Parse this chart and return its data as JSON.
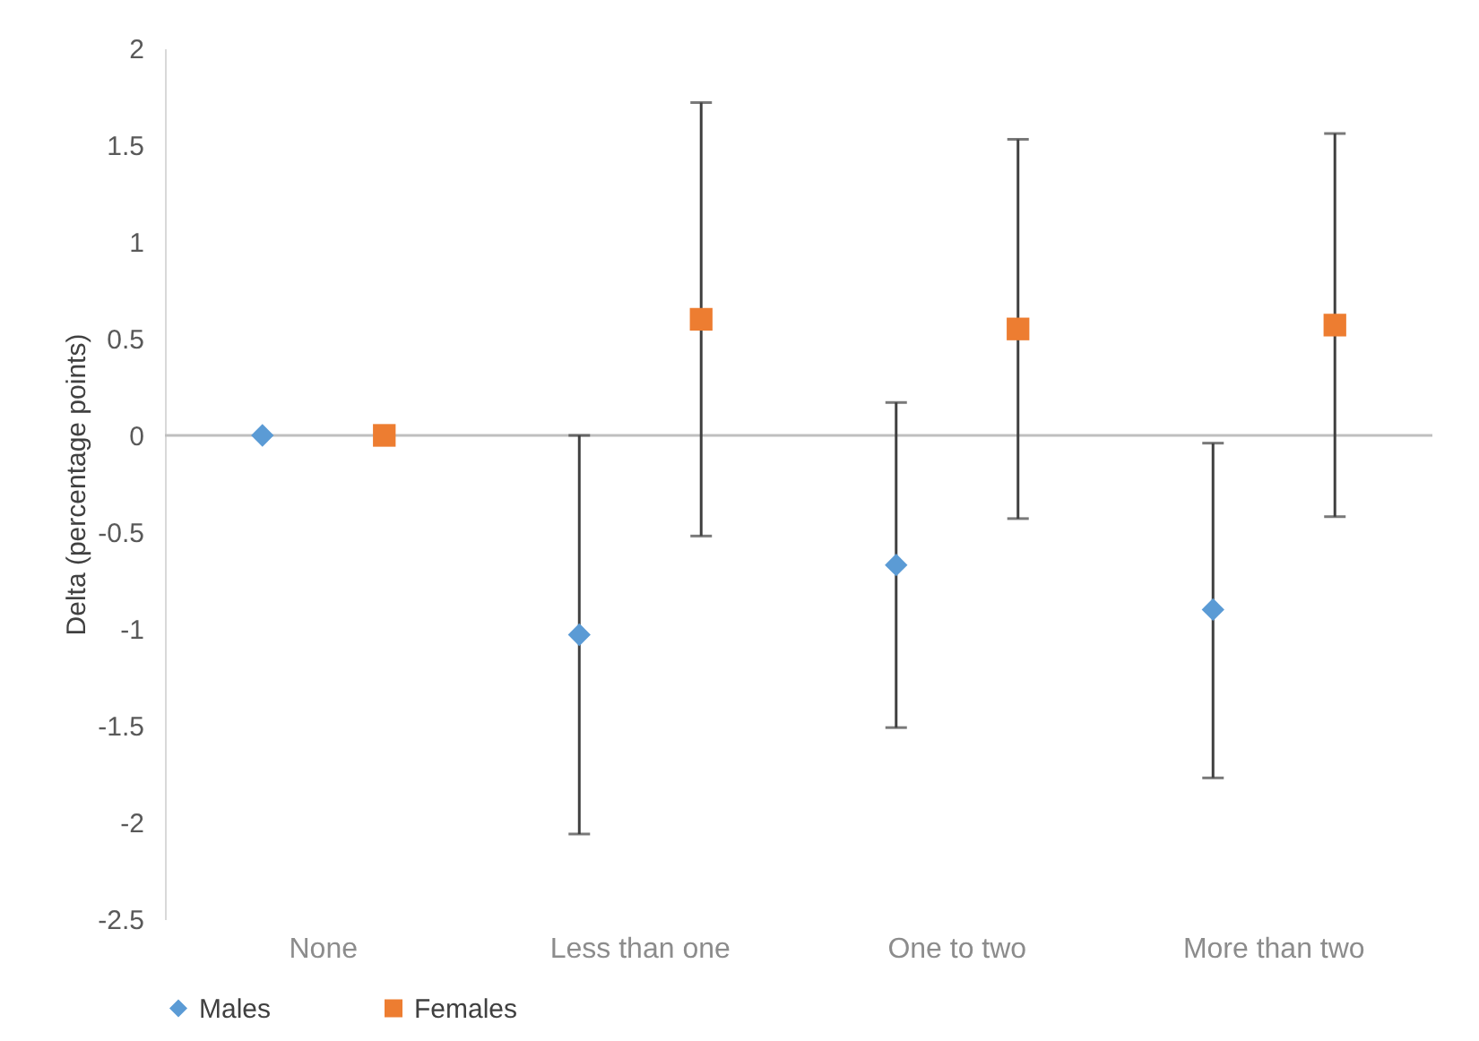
{
  "chart_data": {
    "type": "scatter",
    "ylabel": "Delta (percentage points)",
    "categories": [
      "None",
      "Less than one",
      "One to two",
      "More than two"
    ],
    "series": [
      {
        "name": "Males",
        "color": "#5b9bd5",
        "marker": "diamond",
        "values": [
          0,
          -1.03,
          -0.67,
          -0.9
        ],
        "errors": [
          null,
          [
            -2.06,
            0
          ],
          [
            -1.51,
            0.17
          ],
          [
            -1.77,
            -0.04
          ]
        ]
      },
      {
        "name": "Females",
        "color": "#ed7d31",
        "marker": "square",
        "values": [
          0,
          0.6,
          0.55,
          0.57
        ],
        "errors": [
          null,
          [
            -0.52,
            1.72
          ],
          [
            -0.43,
            1.53
          ],
          [
            -0.42,
            1.56
          ]
        ]
      }
    ],
    "ylim": [
      -2.5,
      2
    ],
    "yticks": [
      -2.5,
      -2,
      -1.5,
      -1,
      -0.5,
      0,
      0.5,
      1,
      1.5,
      2
    ],
    "grid": false,
    "legend": "bottom",
    "ref_lines": [
      {
        "axis": "y",
        "value": 0,
        "color": "#bfbfbf"
      }
    ]
  }
}
